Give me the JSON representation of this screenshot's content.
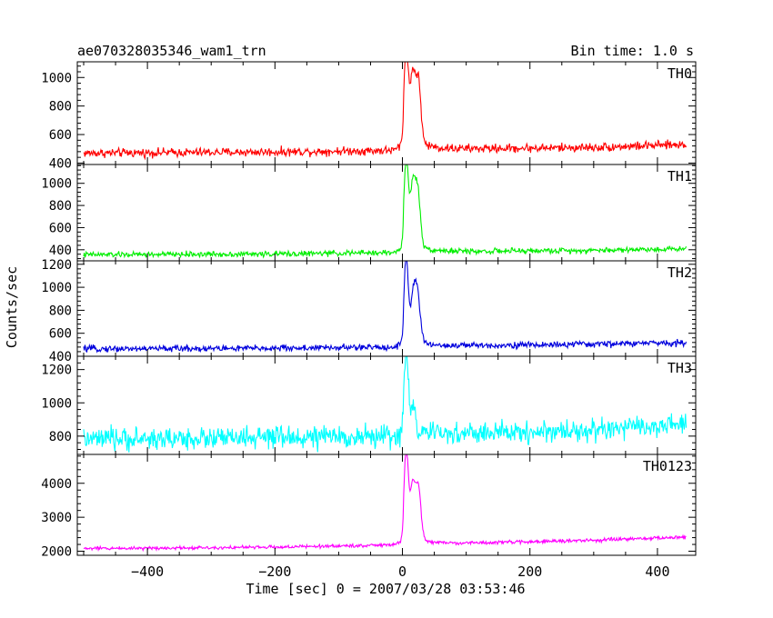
{
  "header": {
    "left_title": "ae070328035346_wam1_trn",
    "right_title": "Bin time: 1.0 s"
  },
  "axes": {
    "xlabel": "Time [sec] 0 = 2007/03/28 03:53:46",
    "ylabel": "Counts/sec",
    "xlim": [
      -510,
      460
    ],
    "xticks": [
      "−400",
      "−200",
      "0",
      "200",
      "400"
    ],
    "xtick_values": [
      -400,
      -200,
      0,
      200,
      400
    ]
  },
  "chart_data": {
    "type": "line",
    "bin_time_s": 1.0,
    "x_range": [
      -500,
      445
    ],
    "series": [
      {
        "name": "TH0",
        "color": "#ff0000",
        "ylim": [
          390,
          1110
        ],
        "yticks": [
          "400",
          "600",
          "800",
          "1000"
        ],
        "ytick_values": [
          400,
          600,
          800,
          1000
        ],
        "baseline": {
          "x": [
            -500,
            -200,
            0,
            100,
            300,
            445
          ],
          "y": [
            470,
            478,
            490,
            500,
            510,
            530
          ]
        },
        "noise_amplitude": 55,
        "peaks": [
          {
            "x": 6,
            "height": 600,
            "width": 3
          },
          {
            "x": 16,
            "height": 450,
            "width": 4
          },
          {
            "x": 25,
            "height": 420,
            "width": 4
          }
        ],
        "decay": {
          "start": 2,
          "height": 170,
          "tau": 22
        }
      },
      {
        "name": "TH1",
        "color": "#00ee00",
        "ylim": [
          300,
          1170
        ],
        "yticks": [
          "400",
          "600",
          "800",
          "1000"
        ],
        "ytick_values": [
          400,
          600,
          800,
          1000
        ],
        "baseline": {
          "x": [
            -500,
            -200,
            0,
            100,
            300,
            445
          ],
          "y": [
            355,
            362,
            375,
            385,
            395,
            410
          ]
        },
        "noise_amplitude": 45,
        "peaks": [
          {
            "x": 6,
            "height": 720,
            "width": 3
          },
          {
            "x": 16,
            "height": 520,
            "width": 4
          },
          {
            "x": 24,
            "height": 480,
            "width": 4
          }
        ],
        "decay": {
          "start": 2,
          "height": 170,
          "tau": 22
        }
      },
      {
        "name": "TH2",
        "color": "#0000dd",
        "ylim": [
          400,
          1230
        ],
        "yticks": [
          "400",
          "600",
          "800",
          "1000",
          "1200"
        ],
        "ytick_values": [
          400,
          600,
          800,
          1000,
          1200
        ],
        "baseline": {
          "x": [
            -500,
            -200,
            0,
            100,
            300,
            445
          ],
          "y": [
            465,
            470,
            480,
            492,
            505,
            520
          ]
        },
        "noise_amplitude": 50,
        "peaks": [
          {
            "x": 6,
            "height": 700,
            "width": 3
          },
          {
            "x": 17,
            "height": 380,
            "width": 4
          },
          {
            "x": 24,
            "height": 380,
            "width": 4
          }
        ],
        "decay": {
          "start": 2,
          "height": 130,
          "tau": 22
        }
      },
      {
        "name": "TH3",
        "color": "#00ffff",
        "ylim": [
          690,
          1280
        ],
        "yticks": [
          "800",
          "1000",
          "1200"
        ],
        "ytick_values": [
          800,
          1000,
          1200
        ],
        "baseline": {
          "x": [
            -500,
            -200,
            0,
            100,
            300,
            445
          ],
          "y": [
            780,
            790,
            800,
            815,
            835,
            870
          ]
        },
        "noise_amplitude": 120,
        "peaks": [
          {
            "x": 6,
            "height": 450,
            "width": 3
          },
          {
            "x": 16,
            "height": 160,
            "width": 4
          }
        ],
        "decay": {
          "start": 2,
          "height": 60,
          "tau": 22
        }
      },
      {
        "name": "TH0123",
        "color": "#ff00ff",
        "ylim": [
          1880,
          4850
        ],
        "yticks": [
          "2000",
          "3000",
          "4000"
        ],
        "ytick_values": [
          2000,
          3000,
          4000
        ],
        "baseline": {
          "x": [
            -500,
            -200,
            0,
            100,
            300,
            445
          ],
          "y": [
            2080,
            2120,
            2190,
            2240,
            2320,
            2420
          ]
        },
        "noise_amplitude": 90,
        "peaks": [
          {
            "x": 6,
            "height": 2500,
            "width": 3
          },
          {
            "x": 16,
            "height": 1500,
            "width": 4
          },
          {
            "x": 25,
            "height": 1500,
            "width": 4
          }
        ],
        "decay": {
          "start": 2,
          "height": 480,
          "tau": 22
        }
      }
    ]
  }
}
